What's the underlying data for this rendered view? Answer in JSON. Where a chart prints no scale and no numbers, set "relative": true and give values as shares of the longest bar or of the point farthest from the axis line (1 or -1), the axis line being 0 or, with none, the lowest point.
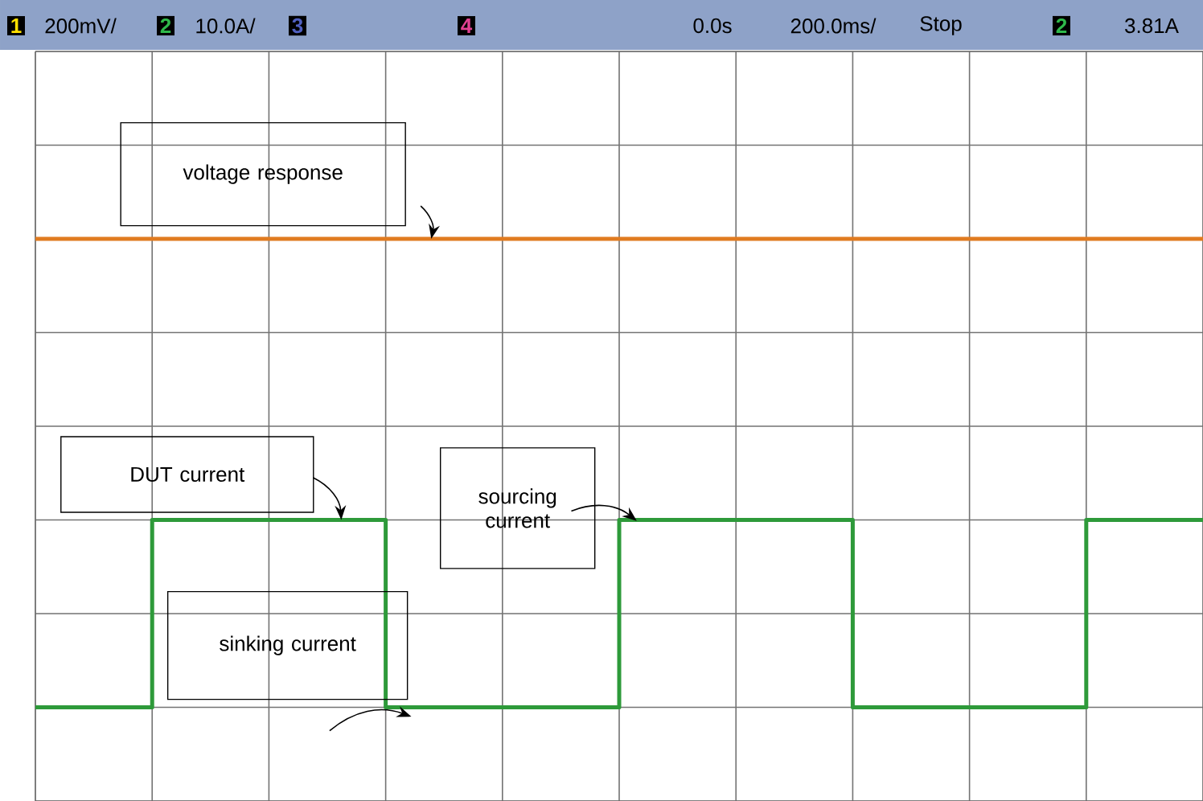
{
  "chart_data": {
    "type": "step",
    "relative": true,
    "grid": true,
    "tick_labels": false,
    "categories": [
      null,
      null,
      null,
      null,
      null,
      null,
      null,
      null,
      null,
      null,
      null
    ],
    "series": [
      {
        "color": "#e07b20",
        "values": [
          1,
          1,
          1,
          1,
          1,
          1,
          1,
          1,
          1,
          1,
          1
        ]
      },
      {
        "color": "#2e9a3a",
        "values": [
          0,
          0.4,
          0.4,
          0,
          0,
          0.4,
          0.4,
          0,
          0,
          0.4,
          0.4
        ]
      }
    ],
    "annotations": [
      "voltage response",
      "DUT current",
      "sourcing current",
      "sinking current",
      "1",
      "200mV/",
      "2",
      "10.0A/",
      "3",
      "4",
      "0.0s",
      "200.0ms/",
      "Stop",
      "2",
      "3.81A"
    ]
  }
}
